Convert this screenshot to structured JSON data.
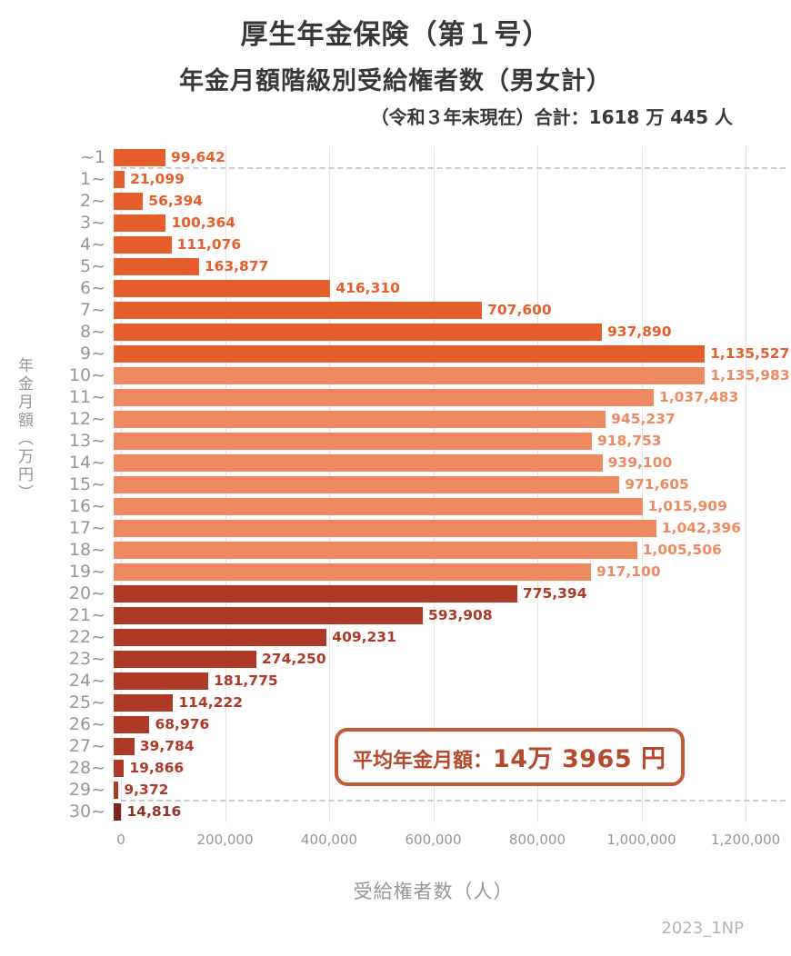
{
  "header": {
    "title": "厚生年金保険（第１号）",
    "subtitle": "年金月額階級別受給権者数（男女計）",
    "note": "（令和３年末現在）合計：1618 万 445 人"
  },
  "annotation": {
    "label": "平均年金月額：",
    "value": "14万 3965 円"
  },
  "watermark": "2023_1NP",
  "colors": {
    "group1": "#e55e2b",
    "group2": "#ee8a60",
    "group3": "#ad3a26",
    "group4": "#7b241c",
    "group4_label": "#8e3526",
    "grid": "#e4e4e4",
    "dashed": "#cccccc",
    "axis_text": "#969696",
    "title_text": "#383838",
    "annotation": "#b5492b",
    "annotation_border": "#c35a33"
  },
  "chart_data": {
    "type": "bar",
    "orientation": "horizontal",
    "title": "厚生年金保険（第１号） 年金月額階級別受給権者数（男女計）",
    "xlabel": "受給権者数（人）",
    "ylabel": "年金月額（万円）",
    "xlim": [
      0,
      1200000
    ],
    "xticks": [
      "0",
      "200,000",
      "400,000",
      "600,000",
      "800,000",
      "1,000,000",
      "1,200,000"
    ],
    "grid": true,
    "legend": false,
    "total": "16,180,445",
    "bars": [
      {
        "label": "~1",
        "value": 99642,
        "text": "99,642",
        "group": 1
      },
      {
        "label": "1~",
        "value": 21099,
        "text": "21,099",
        "group": 1
      },
      {
        "label": "2~",
        "value": 56394,
        "text": "56,394",
        "group": 1
      },
      {
        "label": "3~",
        "value": 100364,
        "text": "100,364",
        "group": 1
      },
      {
        "label": "4~",
        "value": 111076,
        "text": "111,076",
        "group": 1
      },
      {
        "label": "5~",
        "value": 163877,
        "text": "163,877",
        "group": 1
      },
      {
        "label": "6~",
        "value": 416310,
        "text": "416,310",
        "group": 1
      },
      {
        "label": "7~",
        "value": 707600,
        "text": "707,600",
        "group": 1
      },
      {
        "label": "8~",
        "value": 937890,
        "text": "937,890",
        "group": 1
      },
      {
        "label": "9~",
        "value": 1135527,
        "text": "1,135,527",
        "group": 1
      },
      {
        "label": "10~",
        "value": 1135983,
        "text": "1,135,983",
        "group": 2
      },
      {
        "label": "11~",
        "value": 1037483,
        "text": "1,037,483",
        "group": 2
      },
      {
        "label": "12~",
        "value": 945237,
        "text": "945,237",
        "group": 2
      },
      {
        "label": "13~",
        "value": 918753,
        "text": "918,753",
        "group": 2
      },
      {
        "label": "14~",
        "value": 939100,
        "text": "939,100",
        "group": 2
      },
      {
        "label": "15~",
        "value": 971605,
        "text": "971,605",
        "group": 2
      },
      {
        "label": "16~",
        "value": 1015909,
        "text": "1,015,909",
        "group": 2
      },
      {
        "label": "17~",
        "value": 1042396,
        "text": "1,042,396",
        "group": 2
      },
      {
        "label": "18~",
        "value": 1005506,
        "text": "1,005,506",
        "group": 2
      },
      {
        "label": "19~",
        "value": 917100,
        "text": "917,100",
        "group": 2
      },
      {
        "label": "20~",
        "value": 775394,
        "text": "775,394",
        "group": 3
      },
      {
        "label": "21~",
        "value": 593908,
        "text": "593,908",
        "group": 3
      },
      {
        "label": "22~",
        "value": 409231,
        "text": "409,231",
        "group": 3
      },
      {
        "label": "23~",
        "value": 274250,
        "text": "274,250",
        "group": 3
      },
      {
        "label": "24~",
        "value": 181775,
        "text": "181,775",
        "group": 3
      },
      {
        "label": "25~",
        "value": 114222,
        "text": "114,222",
        "group": 3
      },
      {
        "label": "26~",
        "value": 68976,
        "text": "68,976",
        "group": 3
      },
      {
        "label": "27~",
        "value": 39784,
        "text": "39,784",
        "group": 3
      },
      {
        "label": "28~",
        "value": 19866,
        "text": "19,866",
        "group": 3
      },
      {
        "label": "29~",
        "value": 9372,
        "text": "9,372",
        "group": 3
      },
      {
        "label": "30~",
        "value": 14816,
        "text": "14,816",
        "group": 4
      }
    ]
  }
}
